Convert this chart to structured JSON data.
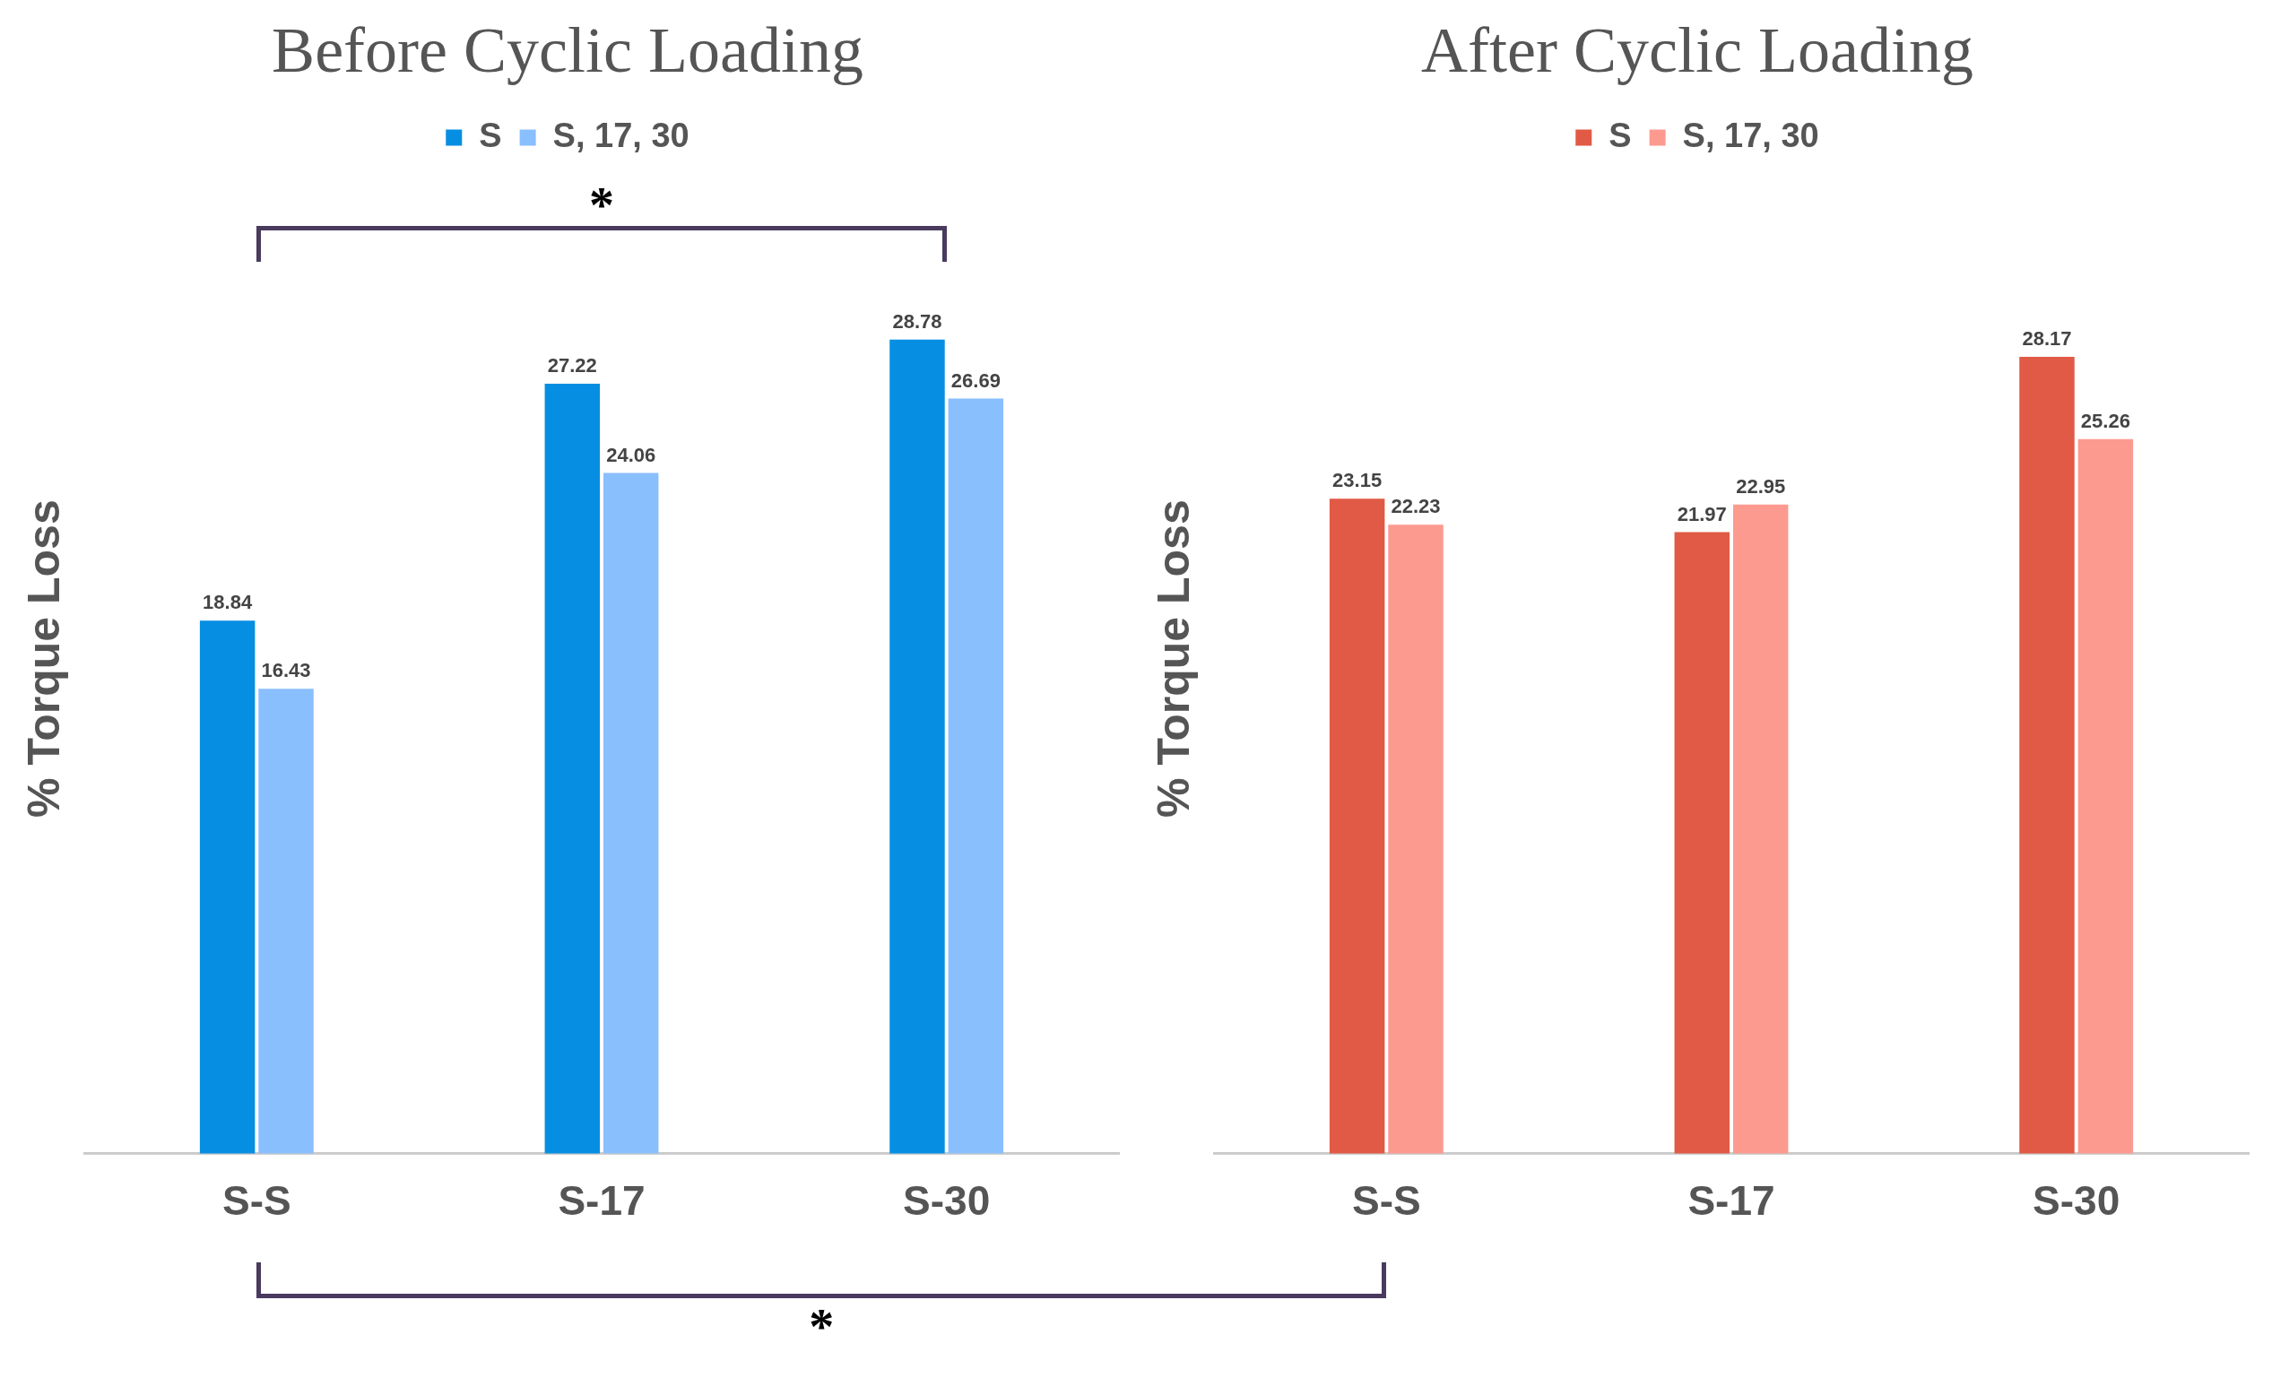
{
  "chart_data": [
    {
      "type": "bar",
      "title": "Before Cyclic Loading",
      "ylabel": "% Torque Loss",
      "categories": [
        "S-S",
        "S-17",
        "S-30"
      ],
      "series": [
        {
          "name": "S",
          "color": "#068ee2",
          "values": [
            18.84,
            27.22,
            28.78
          ]
        },
        {
          "name": "S, 17, 30",
          "color": "#8abffe",
          "values": [
            16.43,
            24.06,
            26.69
          ]
        }
      ],
      "data_labels": true,
      "legend": "top",
      "grid": false,
      "annotations": [
        "*"
      ]
    },
    {
      "type": "bar",
      "title": "After Cyclic Loading",
      "ylabel": "% Torque Loss",
      "categories": [
        "S-S",
        "S-17",
        "S-30"
      ],
      "series": [
        {
          "name": "S",
          "color": "#e05a45",
          "values": [
            23.15,
            21.97,
            28.17
          ]
        },
        {
          "name": "S, 17, 30",
          "color": "#fd9a90",
          "values": [
            22.23,
            22.95,
            25.26
          ]
        }
      ],
      "data_labels": true,
      "legend": "top",
      "grid": false,
      "annotations": [
        "*"
      ]
    }
  ]
}
